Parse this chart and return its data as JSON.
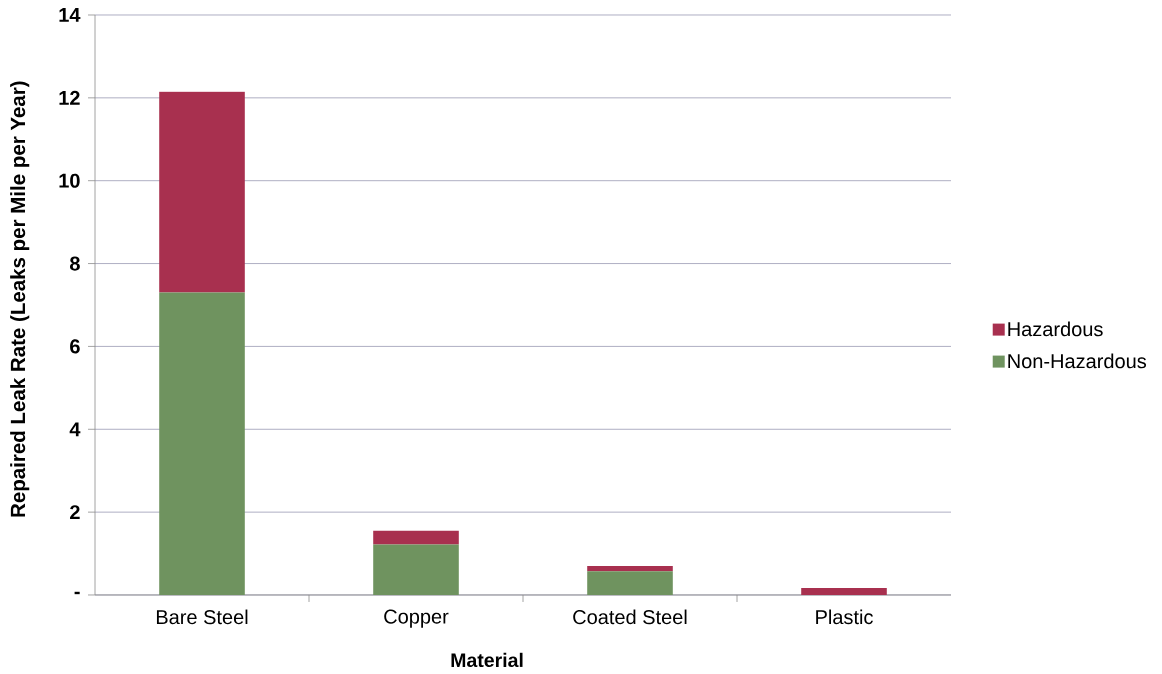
{
  "chart_data": {
    "type": "bar",
    "stacked": true,
    "xlabel": "Material",
    "ylabel": "Repaired Leak Rate (Leaks per Mile per Year)",
    "categories": [
      "Bare Steel",
      "Copper",
      "Coated Steel",
      "Plastic"
    ],
    "series": [
      {
        "name": "Non-Hazardous",
        "color": "#6f935f",
        "values": [
          7.3,
          1.22,
          0.57,
          0
        ]
      },
      {
        "name": "Hazardous",
        "color": "#a8304f",
        "values": [
          4.85,
          0.33,
          0.13,
          0.17
        ]
      }
    ],
    "ylim": [
      0,
      14
    ],
    "yticks": [
      {
        "value": 0,
        "label": "-"
      },
      2,
      4,
      6,
      8,
      10,
      12,
      14
    ],
    "grid": "y",
    "legend": "right"
  }
}
